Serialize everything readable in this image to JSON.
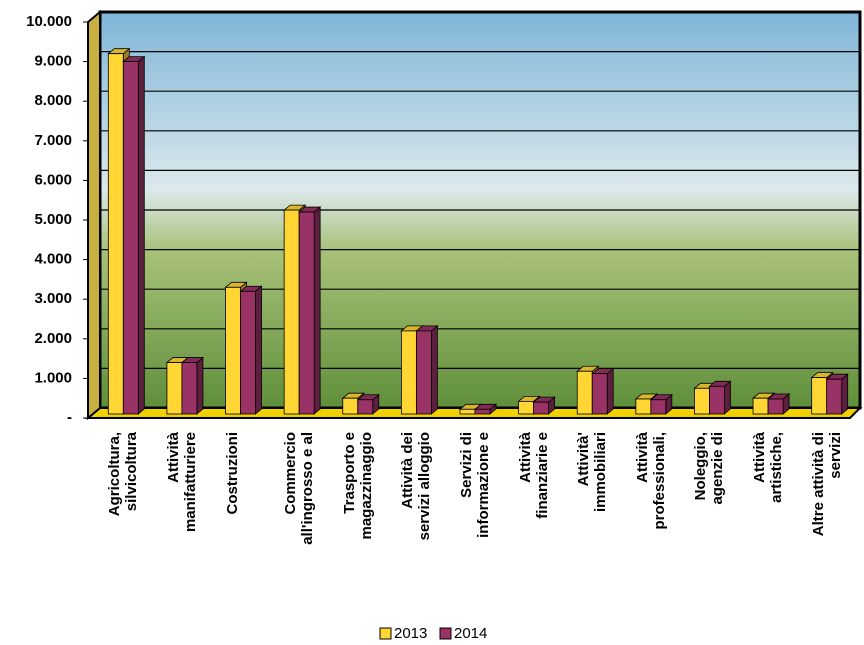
{
  "chart_data": {
    "type": "bar3d",
    "categories": [
      "Agricoltura,\nsilvicoltura",
      "Attività\nmanifatturiere",
      "Costruzioni",
      "Commercio\nall'ingrosso e al",
      "Trasporto e\nmagazzinaggio",
      "Attività dei\nservizi alloggio",
      "Servizi di\ninformazione e",
      "Attività\nfinanziarie e",
      "Attività'\nimmobiliari",
      "Attività\nprofessionali,",
      "Noleggio,\nagenzie di",
      "Attività\nartistiche,",
      "Altre attività di\nservizi"
    ],
    "series": [
      {
        "name": "2013",
        "color": "#ffd633",
        "values": [
          9200,
          1400,
          3300,
          5250,
          500,
          2200,
          220,
          420,
          1180,
          480,
          750,
          500,
          1020
        ]
      },
      {
        "name": "2014",
        "color": "#993366",
        "values": [
          9000,
          1400,
          3200,
          5200,
          460,
          2200,
          220,
          400,
          1120,
          460,
          800,
          480,
          980
        ]
      }
    ],
    "ylim": [
      0,
      10000
    ],
    "yticks": [
      {
        "value": 0,
        "label": "-"
      },
      {
        "value": 1000,
        "label": "1.000"
      },
      {
        "value": 2000,
        "label": "2.000"
      },
      {
        "value": 3000,
        "label": "3.000"
      },
      {
        "value": 4000,
        "label": "4.000"
      },
      {
        "value": 5000,
        "label": "5.000"
      },
      {
        "value": 6000,
        "label": "6.000"
      },
      {
        "value": 7000,
        "label": "7.000"
      },
      {
        "value": 8000,
        "label": "8.000"
      },
      {
        "value": 9000,
        "label": "9.000"
      },
      {
        "value": 10000,
        "label": "10.000"
      }
    ],
    "grid": true,
    "legend": "bottom"
  }
}
